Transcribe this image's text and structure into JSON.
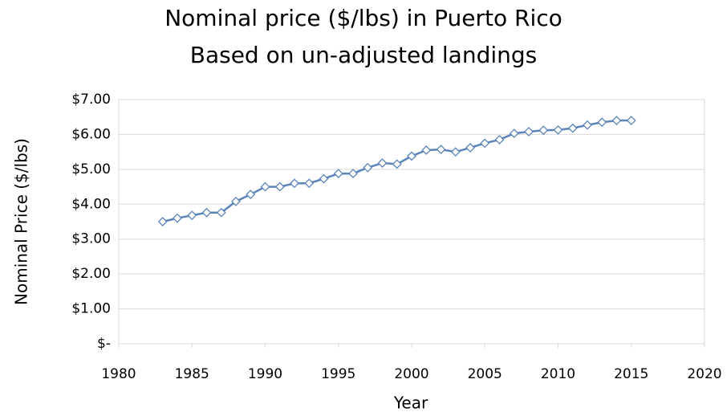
{
  "chart_data": {
    "type": "line",
    "title": "Nominal price ($/lbs) in Puerto Rico",
    "subtitle": "Based on un-adjusted landings",
    "x_label": "Year",
    "y_label": "Nominal Price ($/lbs)",
    "x": [
      1983,
      1984,
      1985,
      1986,
      1987,
      1988,
      1989,
      1990,
      1991,
      1992,
      1993,
      1994,
      1995,
      1996,
      1997,
      1998,
      1999,
      2000,
      2001,
      2002,
      2003,
      2004,
      2005,
      2006,
      2007,
      2008,
      2009,
      2010,
      2011,
      2012,
      2013,
      2014,
      2015
    ],
    "series": [
      {
        "name": "Nominal price",
        "color": "#5b84b9",
        "values": [
          3.5,
          3.6,
          3.68,
          3.76,
          3.76,
          4.08,
          4.28,
          4.5,
          4.5,
          4.6,
          4.6,
          4.73,
          4.88,
          4.88,
          5.05,
          5.18,
          5.15,
          5.38,
          5.55,
          5.57,
          5.5,
          5.62,
          5.75,
          5.85,
          6.03,
          6.08,
          6.12,
          6.13,
          6.18,
          6.27,
          6.35,
          6.4,
          6.4
        ]
      }
    ],
    "xlim": [
      1980,
      2020
    ],
    "xticks": [
      1980,
      1985,
      1990,
      1995,
      2000,
      2005,
      2010,
      2015,
      2020
    ],
    "ylim": [
      0,
      7
    ],
    "yticks": [
      {
        "value": 0,
        "label": "$-"
      },
      {
        "value": 1,
        "label": "$1.00"
      },
      {
        "value": 2,
        "label": "$2.00"
      },
      {
        "value": 3,
        "label": "$3.00"
      },
      {
        "value": 4,
        "label": "$4.00"
      },
      {
        "value": 5,
        "label": "$5.00"
      },
      {
        "value": 6,
        "label": "$6.00"
      },
      {
        "value": 7,
        "label": "$7.00"
      }
    ],
    "grid": true
  }
}
